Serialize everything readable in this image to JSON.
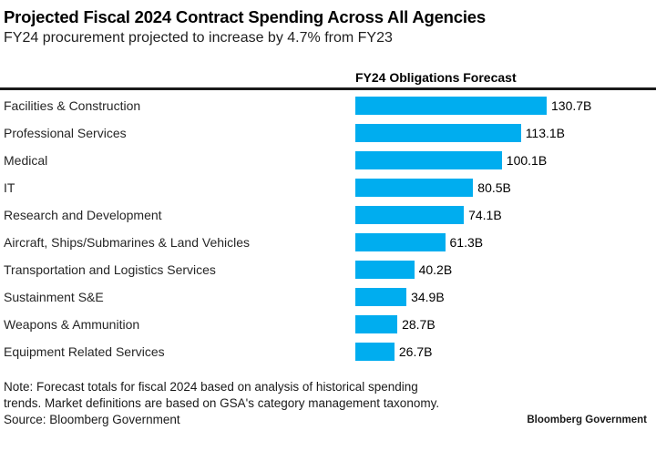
{
  "header": {
    "title": "Projected Fiscal 2024 Contract Spending Across All Agencies",
    "subtitle": "FY24 procurement projected to increase by 4.7% from FY23"
  },
  "chart_data": {
    "type": "bar",
    "orientation": "horizontal",
    "title": "FY24 Obligations Forecast",
    "categories": [
      "Facilities & Construction",
      "Professional Services",
      "Medical",
      "IT",
      "Research and Development",
      "Aircraft, Ships/Submarines & Land Vehicles",
      "Transportation and Logistics Services",
      "Sustainment S&E",
      "Weapons & Ammunition",
      "Equipment Related Services"
    ],
    "values": [
      130.7,
      113.1,
      100.1,
      80.5,
      74.1,
      61.3,
      40.2,
      34.9,
      28.7,
      26.7
    ],
    "value_labels": [
      "130.7B",
      "113.1B",
      "100.1B",
      "80.5B",
      "74.1B",
      "61.3B",
      "40.2B",
      "34.9B",
      "28.7B",
      "26.7B"
    ],
    "unit": "USD billions",
    "xlim": [
      0,
      135
    ],
    "grid": false,
    "legend": false,
    "bar_color": "#00adef"
  },
  "footer": {
    "note_line1": "Note: Forecast totals for fiscal 2024 based on analysis of historical spending",
    "note_line2": "trends. Market definitions are based on GSA's category management taxonomy.",
    "source": "Source: Bloomberg Government",
    "brand": "Bloomberg Government"
  }
}
